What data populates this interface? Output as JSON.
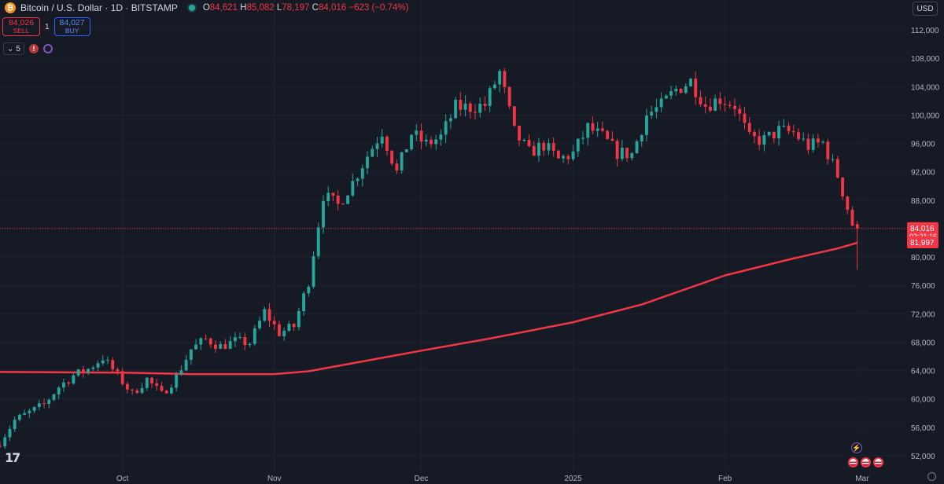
{
  "header": {
    "coin_glyph": "₿",
    "title": "Bitcoin / U.S. Dollar · 1D · BITSTAMP",
    "open_label": "O",
    "open": "84,621",
    "high_label": "H",
    "high": "85,082",
    "low_label": "L",
    "low": "78,197",
    "close_label": "C",
    "close": "84,016",
    "change": "−623 (−0.74%)"
  },
  "trade": {
    "sell_price": "84,026",
    "sell_label": "SELL",
    "spread": "1",
    "buy_price": "84,027",
    "buy_label": "BUY"
  },
  "indicators": {
    "count": "5",
    "alert_glyph": "!"
  },
  "currency": "USD",
  "logo_text": "17",
  "spark_glyph": "⚡",
  "chart_data": {
    "type": "candlestick",
    "ylim": [
      50000,
      114000
    ],
    "y_ticks": [
      "52,000",
      "56,000",
      "60,000",
      "64,000",
      "68,000",
      "72,000",
      "76,000",
      "80,000",
      "84,000",
      "88,000",
      "92,000",
      "96,000",
      "100,000",
      "104,000",
      "108,000",
      "112,000"
    ],
    "x_labels": [
      "Oct",
      "Nov",
      "Dec",
      "2025",
      "Feb",
      "Mar"
    ],
    "x_label_dates": [
      "2024-10-01",
      "2024-11-01",
      "2024-12-01",
      "2025-01-01",
      "2025-02-01",
      "2025-03-01"
    ],
    "x_range": [
      "2024-09-06",
      "2025-03-10"
    ],
    "last_price": {
      "value": 84016,
      "label": "84,016",
      "countdown": "02:21:16"
    },
    "moving_average": {
      "label": "81,997",
      "last": 81997
    },
    "colors": {
      "up": "#26a69a",
      "down": "#f23645",
      "ma": "#f23645",
      "grid": "#1f2330",
      "background": "#161a25"
    },
    "candle_closes": [
      {
        "date": "2024-09-06",
        "close": 53900
      },
      {
        "date": "2024-09-09",
        "close": 57000
      },
      {
        "date": "2024-09-12",
        "close": 58100
      },
      {
        "date": "2024-09-15",
        "close": 59200
      },
      {
        "date": "2024-09-18",
        "close": 61700
      },
      {
        "date": "2024-09-21",
        "close": 63300
      },
      {
        "date": "2024-09-24",
        "close": 64200
      },
      {
        "date": "2024-09-27",
        "close": 65800
      },
      {
        "date": "2024-09-30",
        "close": 63300
      },
      {
        "date": "2024-10-03",
        "close": 60700
      },
      {
        "date": "2024-10-06",
        "close": 62800
      },
      {
        "date": "2024-10-09",
        "close": 60600
      },
      {
        "date": "2024-10-12",
        "close": 63100
      },
      {
        "date": "2024-10-15",
        "close": 67000
      },
      {
        "date": "2024-10-18",
        "close": 68400
      },
      {
        "date": "2024-10-21",
        "close": 67400
      },
      {
        "date": "2024-10-24",
        "close": 68100
      },
      {
        "date": "2024-10-27",
        "close": 67900
      },
      {
        "date": "2024-10-30",
        "close": 72300
      },
      {
        "date": "2024-11-02",
        "close": 69300
      },
      {
        "date": "2024-11-05",
        "close": 70200
      },
      {
        "date": "2024-11-08",
        "close": 76600
      },
      {
        "date": "2024-11-11",
        "close": 88700
      },
      {
        "date": "2024-11-14",
        "close": 87300
      },
      {
        "date": "2024-11-17",
        "close": 90500
      },
      {
        "date": "2024-11-20",
        "close": 94300
      },
      {
        "date": "2024-11-23",
        "close": 97700
      },
      {
        "date": "2024-11-26",
        "close": 91900
      },
      {
        "date": "2024-11-29",
        "close": 97400
      },
      {
        "date": "2024-12-02",
        "close": 95900
      },
      {
        "date": "2024-12-05",
        "close": 96900
      },
      {
        "date": "2024-12-08",
        "close": 101100
      },
      {
        "date": "2024-12-11",
        "close": 101100
      },
      {
        "date": "2024-12-14",
        "close": 101400
      },
      {
        "date": "2024-12-17",
        "close": 106000
      },
      {
        "date": "2024-12-20",
        "close": 97600
      },
      {
        "date": "2024-12-23",
        "close": 94700
      },
      {
        "date": "2024-12-26",
        "close": 95800
      },
      {
        "date": "2024-12-29",
        "close": 93700
      },
      {
        "date": "2025-01-01",
        "close": 94600
      },
      {
        "date": "2025-01-04",
        "close": 98200
      },
      {
        "date": "2025-01-07",
        "close": 96900
      },
      {
        "date": "2025-01-10",
        "close": 94700
      },
      {
        "date": "2025-01-13",
        "close": 94500
      },
      {
        "date": "2025-01-16",
        "close": 100000
      },
      {
        "date": "2025-01-19",
        "close": 101300
      },
      {
        "date": "2025-01-22",
        "close": 103600
      },
      {
        "date": "2025-01-25",
        "close": 104800
      },
      {
        "date": "2025-01-28",
        "close": 101400
      },
      {
        "date": "2025-01-31",
        "close": 102300
      },
      {
        "date": "2025-02-03",
        "close": 101400
      },
      {
        "date": "2025-02-06",
        "close": 96600
      },
      {
        "date": "2025-02-09",
        "close": 96500
      },
      {
        "date": "2025-02-12",
        "close": 97800
      },
      {
        "date": "2025-02-15",
        "close": 97500
      },
      {
        "date": "2025-02-18",
        "close": 95600
      },
      {
        "date": "2025-02-21",
        "close": 96100
      },
      {
        "date": "2025-02-24",
        "close": 91500
      },
      {
        "date": "2025-02-27",
        "close": 84600
      },
      {
        "date": "2025-02-28",
        "close": 84016
      }
    ],
    "ma_points": [
      {
        "date": "2024-09-06",
        "value": 63800
      },
      {
        "date": "2024-10-01",
        "value": 63700
      },
      {
        "date": "2024-10-15",
        "value": 63500
      },
      {
        "date": "2024-11-01",
        "value": 63500
      },
      {
        "date": "2024-11-08",
        "value": 63900
      },
      {
        "date": "2024-11-20",
        "value": 65400
      },
      {
        "date": "2024-12-01",
        "value": 66800
      },
      {
        "date": "2024-12-15",
        "value": 68500
      },
      {
        "date": "2025-01-01",
        "value": 70800
      },
      {
        "date": "2025-01-15",
        "value": 73300
      },
      {
        "date": "2025-02-01",
        "value": 77400
      },
      {
        "date": "2025-02-15",
        "value": 79800
      },
      {
        "date": "2025-02-24",
        "value": 81200
      },
      {
        "date": "2025-02-28",
        "value": 81997
      }
    ]
  }
}
